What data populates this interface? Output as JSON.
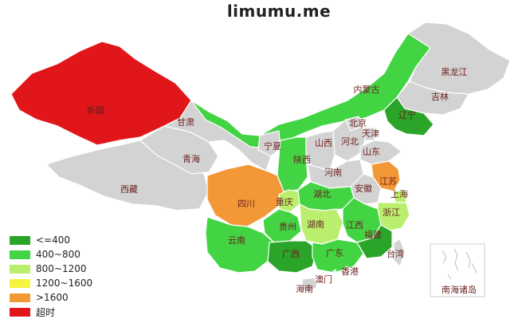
{
  "title": "limumu.me",
  "colors": {
    "le400": "#2aa52a",
    "r400_800": "#42d442",
    "r800_1200": "#b9ef6d",
    "r1200_1600": "#f4f441",
    "gt1600": "#f39837",
    "timeout": "#e0161a",
    "nodata": "#d3d3d3",
    "label": "#6b1e1e"
  },
  "legend": [
    {
      "label": "<=400",
      "color": "#2aa52a"
    },
    {
      "label": "400~800",
      "color": "#42d442"
    },
    {
      "label": "800~1200",
      "color": "#b9ef6d"
    },
    {
      "label": "1200~1600",
      "color": "#f4f441"
    },
    {
      "label": ">1600",
      "color": "#f39837"
    },
    {
      "label": "超时",
      "color": "#e0161a"
    }
  ],
  "regions": [
    {
      "name": "新疆",
      "category": "超时"
    },
    {
      "name": "西藏",
      "category": ""
    },
    {
      "name": "青海",
      "category": ""
    },
    {
      "name": "甘肃",
      "category": ""
    },
    {
      "name": "内蒙古",
      "category": "400~800"
    },
    {
      "name": "黑龙江",
      "category": ""
    },
    {
      "name": "吉林",
      "category": ""
    },
    {
      "name": "辽宁",
      "category": "<=400"
    },
    {
      "name": "宁夏",
      "category": ""
    },
    {
      "name": "北京",
      "category": ""
    },
    {
      "name": "天津",
      "category": ""
    },
    {
      "name": "河北",
      "category": ""
    },
    {
      "name": "山西",
      "category": ""
    },
    {
      "name": "山东",
      "category": ""
    },
    {
      "name": "陕西",
      "category": "400~800"
    },
    {
      "name": "河南",
      "category": ""
    },
    {
      "name": "江苏",
      "category": ">1600"
    },
    {
      "name": "安徽",
      "category": ""
    },
    {
      "name": "上海",
      "category": "800~1200"
    },
    {
      "name": "四川",
      "category": ">1600"
    },
    {
      "name": "重庆",
      "category": "800~1200"
    },
    {
      "name": "湖北",
      "category": "400~800"
    },
    {
      "name": "浙江",
      "category": "800~1200"
    },
    {
      "name": "贵州",
      "category": "400~800"
    },
    {
      "name": "湖南",
      "category": "800~1200"
    },
    {
      "name": "江西",
      "category": "400~800"
    },
    {
      "name": "云南",
      "category": "400~800"
    },
    {
      "name": "广西",
      "category": "<=400"
    },
    {
      "name": "广东",
      "category": "400~800"
    },
    {
      "name": "福建",
      "category": "<=400"
    },
    {
      "name": "台湾",
      "category": ""
    },
    {
      "name": "香港",
      "category": ""
    },
    {
      "name": "澳门",
      "category": ""
    },
    {
      "name": "海南",
      "category": ""
    },
    {
      "name": "南海诸岛",
      "category": ""
    }
  ]
}
